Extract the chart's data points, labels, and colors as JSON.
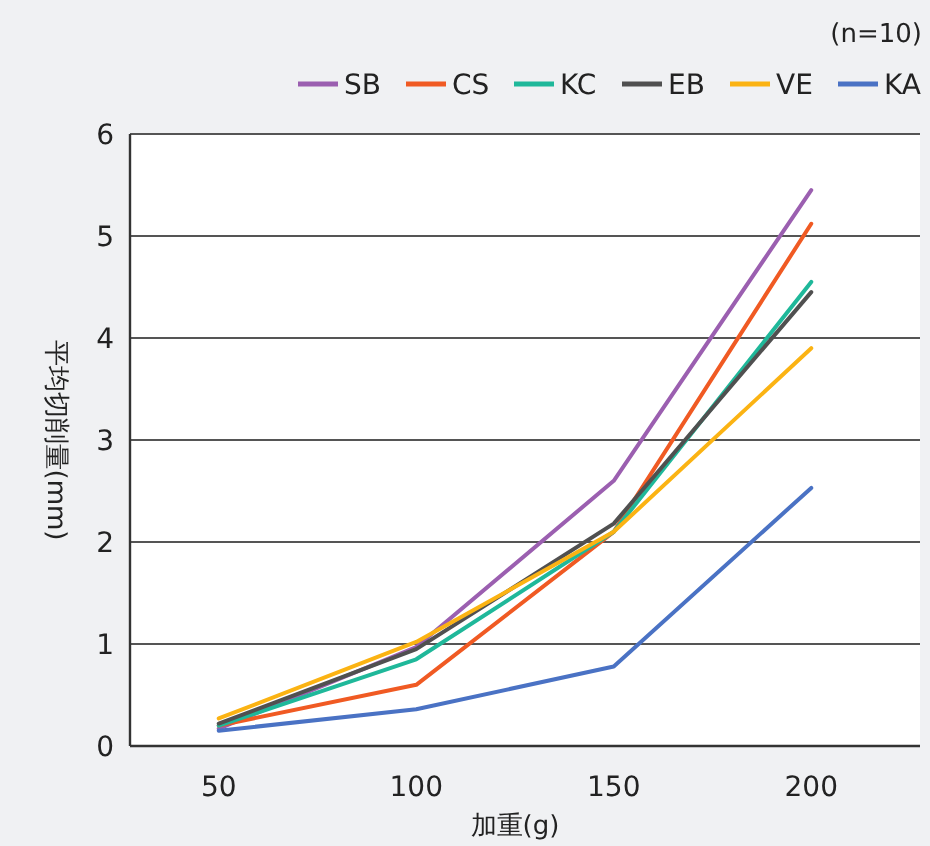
{
  "chart_data": {
    "type": "line",
    "ylabel": "平均切削量(mm)",
    "xlabel": "加重(g)",
    "annotations": [
      "(n=10)"
    ],
    "categories": [
      "50",
      "100",
      "150",
      "200"
    ],
    "ylim": [
      0,
      6
    ],
    "yticks": [
      0,
      1,
      2,
      3,
      4,
      5,
      6
    ],
    "grid": "y",
    "legend": "top right",
    "marker": "none",
    "line_style": "solid",
    "series": [
      {
        "name": "SB",
        "color": "#9b5fb0",
        "values": [
          0.17,
          0.97,
          2.6,
          5.45
        ]
      },
      {
        "name": "CS",
        "color": "#f05a23",
        "values": [
          0.2,
          0.6,
          2.1,
          5.12
        ]
      },
      {
        "name": "KC",
        "color": "#1fb89a",
        "values": [
          0.2,
          0.85,
          2.1,
          4.55
        ]
      },
      {
        "name": "EB",
        "color": "#505050",
        "values": [
          0.22,
          0.95,
          2.18,
          4.45
        ]
      },
      {
        "name": "VE",
        "color": "#fbb313",
        "values": [
          0.27,
          1.02,
          2.1,
          3.9
        ]
      },
      {
        "name": "KA",
        "color": "#4a72c4",
        "values": [
          0.15,
          0.36,
          0.78,
          2.53
        ]
      }
    ]
  }
}
